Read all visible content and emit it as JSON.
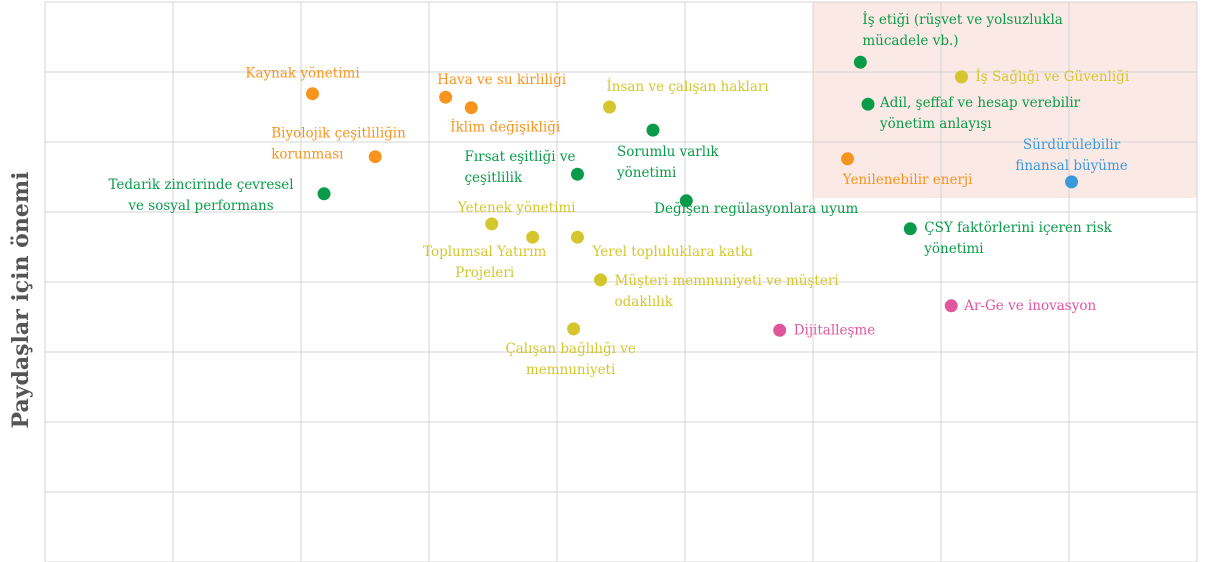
{
  "chart_data": {
    "type": "scatter",
    "ylabel": "Paydaşlar için önemi",
    "xlim": [
      0,
      9
    ],
    "ylim": [
      0,
      8
    ],
    "xticks": [
      0,
      1,
      2,
      3,
      4,
      5,
      6,
      7,
      8,
      9
    ],
    "yticks": [
      0,
      1,
      2,
      3,
      4,
      5,
      6,
      7,
      8
    ],
    "grid": true,
    "highlight": {
      "xlim": [
        6,
        9
      ],
      "ylim": [
        5.2,
        8
      ],
      "color": "#fbe9e6"
    },
    "series": [
      {
        "color": "#f7941d",
        "x": [
          2.09,
          3.13,
          3.33,
          2.58,
          6.27
        ],
        "y": [
          6.69,
          6.64,
          6.49,
          5.79,
          5.76
        ],
        "labels": [
          [
            "Kaynak yönetimi"
          ],
          [
            "Hava ve su kirliliği"
          ],
          [
            "İklim değişikliği"
          ],
          [
            "Biyolojik çeşitliliğin",
            "korunması"
          ],
          [
            "Yenilenebilir enerji"
          ]
        ]
      },
      {
        "color": "#0a9b4a",
        "x": [
          2.18,
          4.16,
          4.75,
          5.01,
          6.37,
          6.43,
          6.76
        ],
        "y": [
          5.26,
          5.54,
          6.17,
          5.16,
          7.14,
          6.54,
          4.76
        ],
        "labels": [
          [
            "Tedarik zincirinde çevresel",
            "ve sosyal performans"
          ],
          [
            "Fırsat eşitliği ve",
            "çeşitlilik"
          ],
          [
            "Sorumlu varlık",
            "yönetimi"
          ],
          [
            "Değişen regülasyonlara uyum"
          ],
          [
            "İş etiği (rüşvet ve yolsuzlukla",
            "mücadele vb.)"
          ],
          [
            "Adil, şeffaf ve hesap verebilir",
            "yönetim anlayışı"
          ],
          [
            "ÇSY faktörlerini içeren risk",
            "yönetimi"
          ]
        ]
      },
      {
        "color": "#d4c62c",
        "x": [
          4.41,
          3.49,
          3.81,
          4.16,
          4.34,
          4.13,
          7.16
        ],
        "y": [
          6.5,
          4.83,
          4.64,
          4.64,
          4.03,
          3.33,
          6.93
        ],
        "labels": [
          [
            "İnsan ve çalışan hakları"
          ],
          [
            "Yetenek yönetimi"
          ],
          [
            "Toplumsal Yatırım",
            "Projeleri"
          ],
          [
            "Yerel topluluklara katkı"
          ],
          [
            "Müşteri memnuniyeti ve müşteri",
            "odaklılık"
          ],
          [
            "Çalışan bağlılığı ve",
            "memnuniyeti"
          ],
          [
            "İş Sağlığı ve Güvenliği"
          ]
        ]
      },
      {
        "color": "#3a9ad9",
        "x": [
          8.02
        ],
        "y": [
          5.43
        ],
        "labels": [
          [
            "Sürdürülebilir",
            "finansal büyüme"
          ]
        ]
      },
      {
        "color": "#e0569c",
        "x": [
          5.74,
          7.08
        ],
        "y": [
          3.31,
          3.66
        ],
        "labels": [
          [
            "Dijitalleşme"
          ],
          [
            "Ar-Ge ve inovasyon"
          ]
        ]
      }
    ]
  }
}
